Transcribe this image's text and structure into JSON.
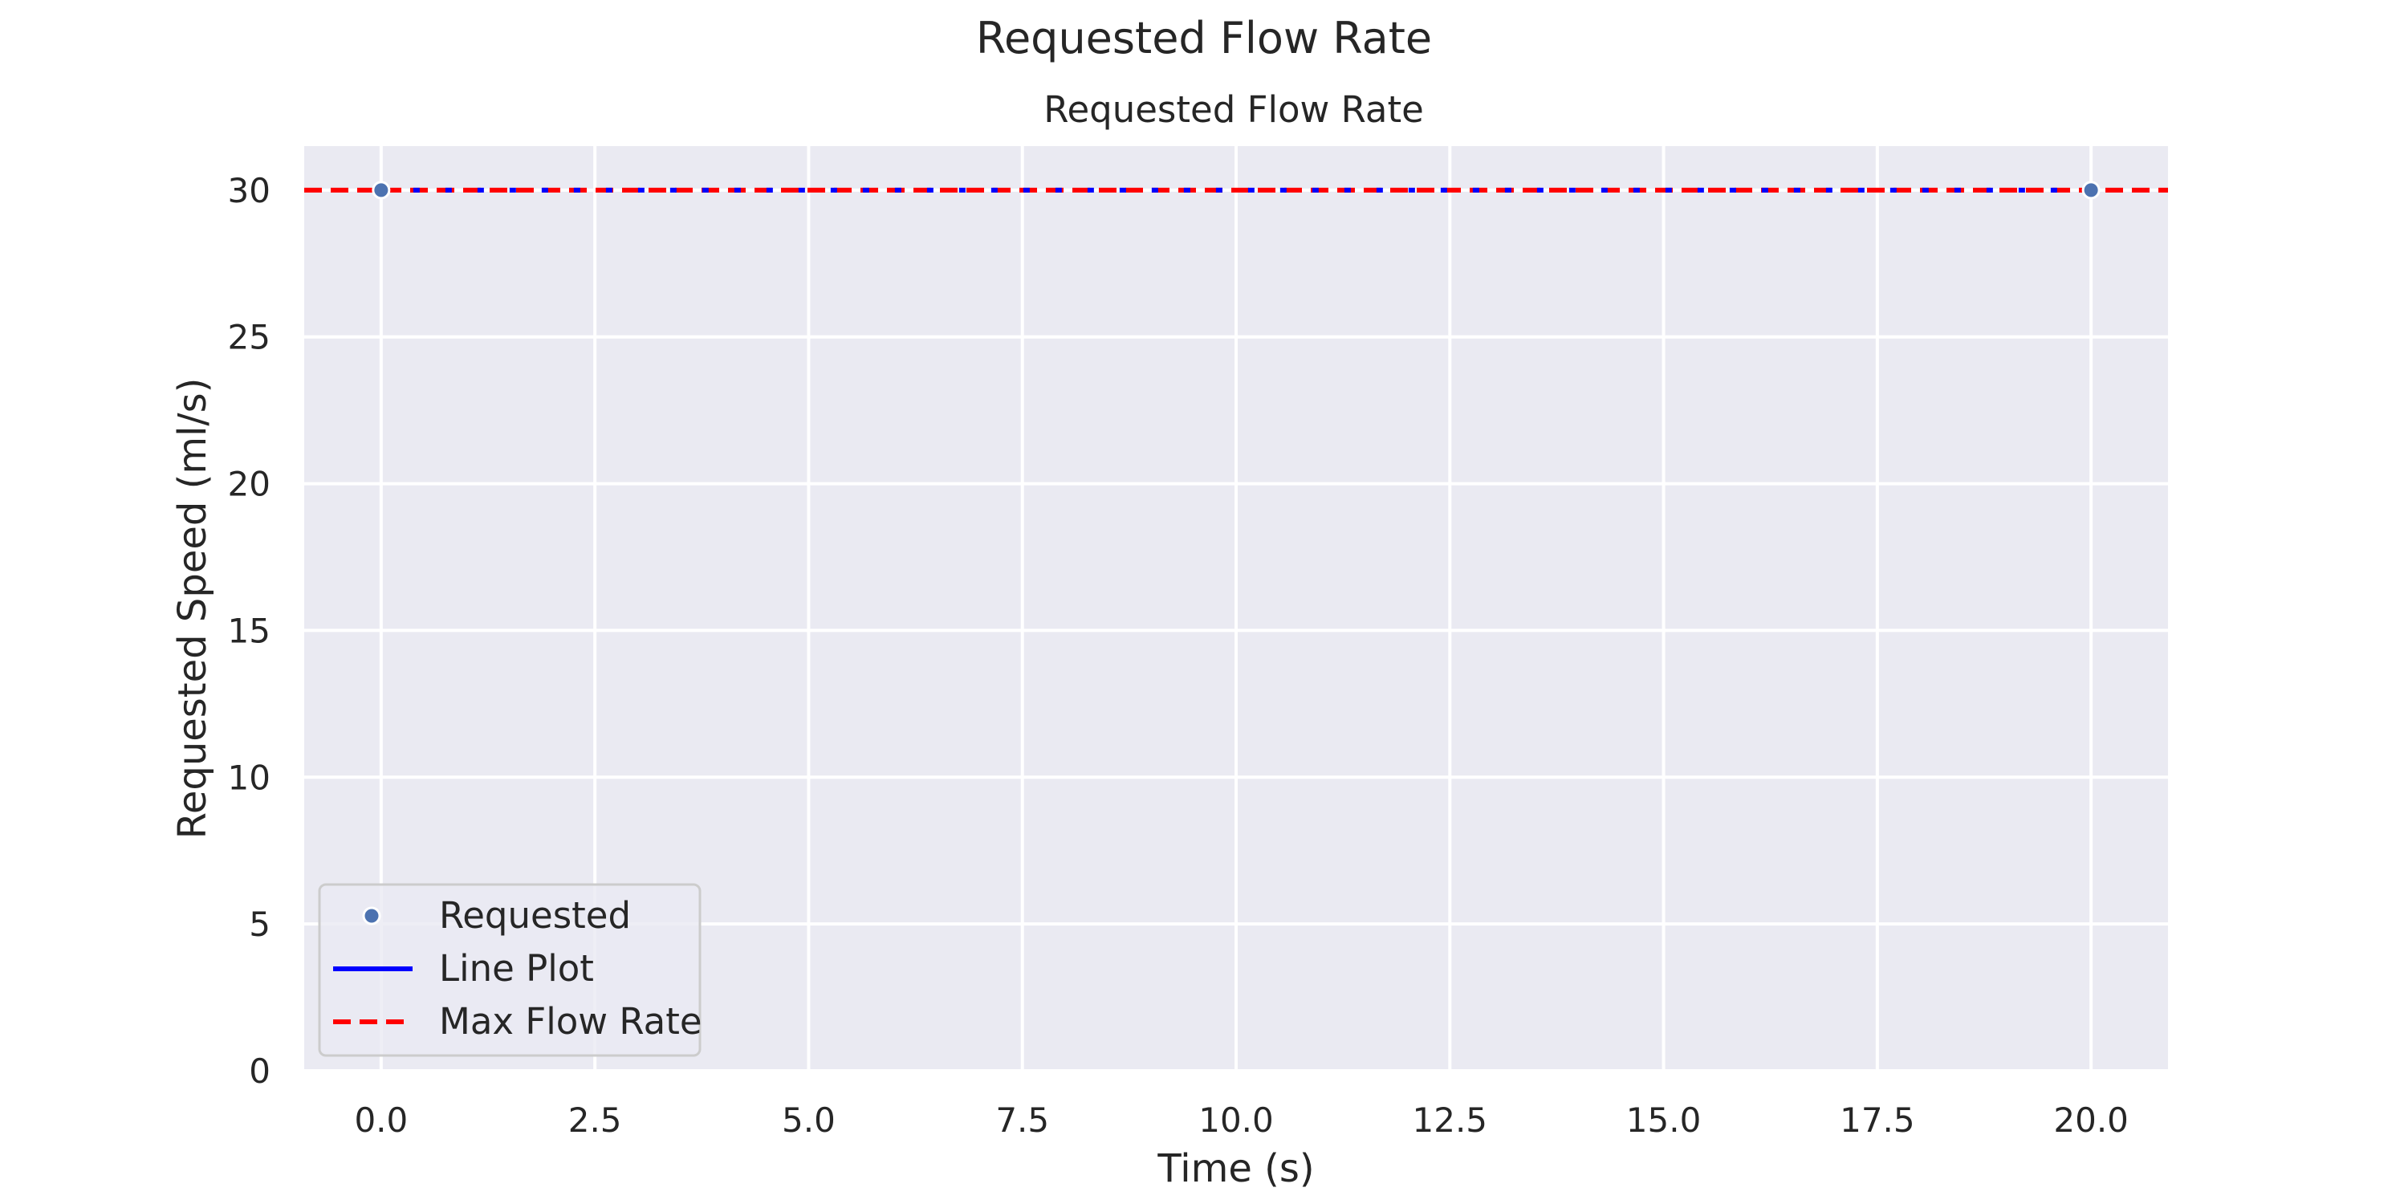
{
  "figure": {
    "suptitle": "Requested Flow Rate"
  },
  "chart_data": {
    "type": "line",
    "title": "Requested Flow Rate",
    "xlabel": "Time (s)",
    "ylabel": "Requested Speed (ml/s)",
    "xlim": [
      -0.9,
      20.9
    ],
    "ylim": [
      0,
      31.5
    ],
    "xticks": [
      0.0,
      2.5,
      5.0,
      7.5,
      10.0,
      12.5,
      15.0,
      17.5,
      20.0
    ],
    "xtick_labels": [
      "0.0",
      "2.5",
      "5.0",
      "7.5",
      "10.0",
      "12.5",
      "15.0",
      "17.5",
      "20.0"
    ],
    "yticks": [
      0,
      5,
      10,
      15,
      20,
      25,
      30
    ],
    "ytick_labels": [
      "0",
      "5",
      "10",
      "15",
      "20",
      "25",
      "30"
    ],
    "grid": true,
    "legend_position": "lower-left",
    "series": [
      {
        "name": "Requested",
        "kind": "scatter",
        "color": "#4c72b0",
        "x": [
          0.0,
          20.0
        ],
        "y": [
          30.0,
          30.0
        ]
      },
      {
        "name": "Line Plot",
        "kind": "line",
        "color": "#0000ff",
        "x": [
          0.0,
          20.0
        ],
        "y": [
          30.0,
          30.0
        ]
      },
      {
        "name": "Max Flow Rate",
        "kind": "hline",
        "style": "dashed",
        "color": "#ff0000",
        "y": 30.0
      }
    ],
    "colors": {
      "axes_background": "#eaeaf2",
      "grid": "#ffffff"
    }
  }
}
